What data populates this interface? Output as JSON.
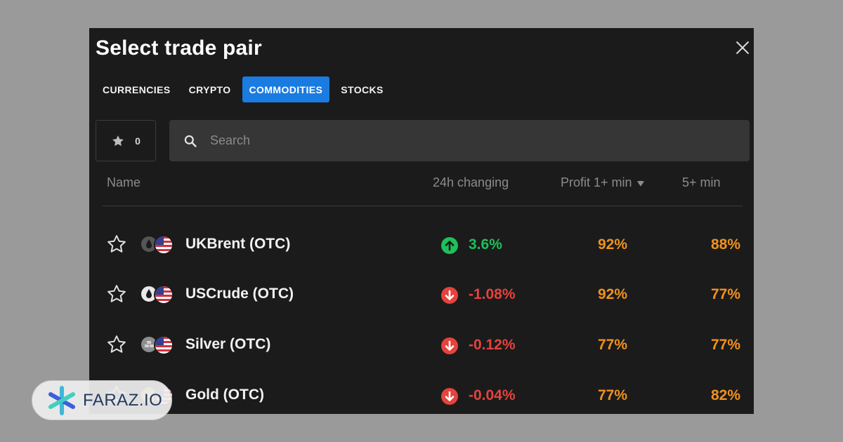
{
  "dialog": {
    "title": "Select trade pair"
  },
  "tabs": [
    {
      "label": "CURRENCIES",
      "active": false
    },
    {
      "label": "CRYPTO",
      "active": false
    },
    {
      "label": "COMMODITIES",
      "active": true
    },
    {
      "label": "STOCKS",
      "active": false
    }
  ],
  "favorites": {
    "count": "0",
    "icon": "star-icon"
  },
  "search": {
    "placeholder": "Search",
    "value": "",
    "icon": "search-icon"
  },
  "columns": {
    "name": "Name",
    "change": "24h changing",
    "profit1": "Profit 1+ min",
    "profit1_sort_icon": "sort-down-icon",
    "profit5": "5+ min"
  },
  "rows": [
    {
      "name": "UKBrent (OTC)",
      "asset_icon": "oil-drop-icon",
      "flag_icon": "us-flag-icon",
      "direction": "up",
      "change": "3.6%",
      "profit1": "92%",
      "profit5": "88%"
    },
    {
      "name": "USCrude (OTC)",
      "asset_icon": "oil-drop-icon",
      "flag_icon": "us-flag-icon",
      "direction": "down",
      "change": "-1.08%",
      "profit1": "92%",
      "profit5": "77%"
    },
    {
      "name": "Silver (OTC)",
      "asset_icon": "silver-bars-icon",
      "flag_icon": "us-flag-icon",
      "direction": "down",
      "change": "-0.12%",
      "profit1": "77%",
      "profit5": "77%"
    },
    {
      "name": "Gold (OTC)",
      "asset_icon": "gold-bars-icon",
      "flag_icon": "us-flag-icon",
      "direction": "down",
      "change": "-0.04%",
      "profit1": "77%",
      "profit5": "82%"
    }
  ],
  "colors": {
    "accent": "#1a7be0",
    "up": "#1fbf5b",
    "down": "#e4433e",
    "profit": "#f0921e",
    "panel_bg": "#1b1b1b"
  },
  "watermark": {
    "text": "FARAZ.IO",
    "icon": "faraz-logo-icon"
  }
}
